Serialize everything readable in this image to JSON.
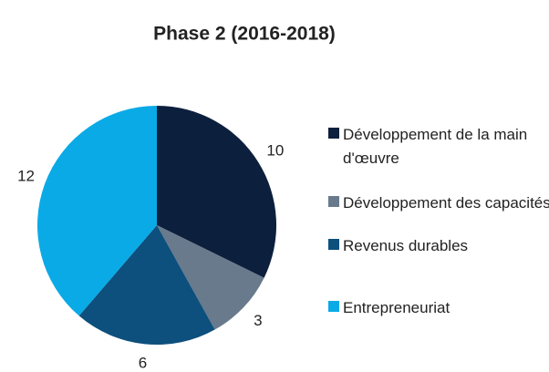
{
  "chart_data": {
    "type": "pie",
    "title": "Phase 2 (2016-2018)",
    "categories": [
      "Développement de la main d'œuvre",
      "Développement des capacités",
      "Revenus durables",
      "Entrepreneuriat"
    ],
    "values": [
      10,
      3,
      6,
      12
    ],
    "colors": [
      "#0c1f3d",
      "#687a8c",
      "#0d4f7d",
      "#0aaae6"
    ],
    "legend": "right"
  }
}
